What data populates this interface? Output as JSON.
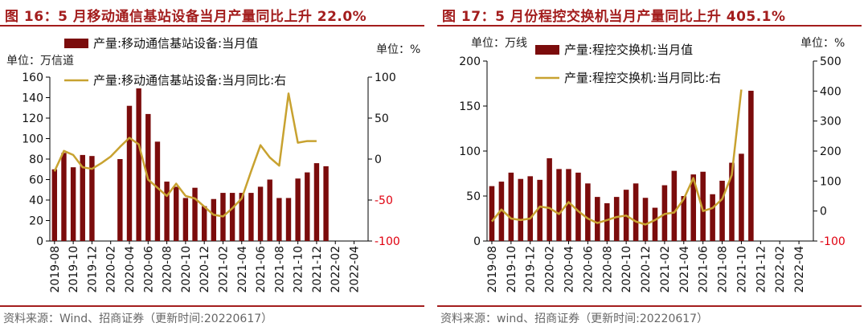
{
  "colors": {
    "bar": "#7b0c0c",
    "line": "#c8a230",
    "accent": "#a31d1d",
    "neg_tick": "#e0000f"
  },
  "chart_data": [
    {
      "type": "bar",
      "title": "图 16：5 月移动通信基站设备当月产量同比上升 22.0%",
      "unit_left": "单位：万信道",
      "unit_right": "单位：%",
      "source": "资料来源：Wind、招商证券（更新时间:20220617）",
      "legend": [
        "产量:移动通信基站设备:当月值",
        "产量:移动通信基站设备:当月同比:右"
      ],
      "ylim": [
        0,
        160
      ],
      "y_ticks": [
        "0",
        "20",
        "40",
        "60",
        "80",
        "100",
        "120",
        "140",
        "160"
      ],
      "y2lim": [
        -100,
        100
      ],
      "y2_ticks": [
        "-100",
        "-50",
        "0",
        "50",
        "100"
      ],
      "x_tick_labels": [
        "2019-08",
        "2019-10",
        "2019-12",
        "2020-02",
        "2020-04",
        "2020-06",
        "2020-08",
        "2020-10",
        "2020-12",
        "2021-02",
        "2021-04",
        "2021-06",
        "2021-08",
        "2021-10",
        "2021-12",
        "2022-02",
        "2022-04"
      ],
      "categories": [
        "2019-08",
        "2019-09",
        "2019-10",
        "2019-11",
        "2019-12",
        "2020-01",
        "2020-02",
        "2020-03",
        "2020-04",
        "2020-05",
        "2020-06",
        "2020-07",
        "2020-08",
        "2020-09",
        "2020-10",
        "2020-11",
        "2020-12",
        "2021-01",
        "2021-02",
        "2021-03",
        "2021-04",
        "2021-05",
        "2021-06",
        "2021-07",
        "2021-08",
        "2021-09",
        "2021-10",
        "2021-11",
        "2021-12",
        "2022-01",
        "2022-02",
        "2022-03",
        "2022-04",
        "2022-05"
      ],
      "series": [
        {
          "name": "产量:移动通信基站设备:当月值",
          "type": "bar",
          "axis": "left",
          "values": [
            70,
            86,
            72,
            84,
            83,
            null,
            null,
            80,
            132,
            149,
            124,
            97,
            58,
            53,
            42,
            52,
            34,
            41,
            47,
            47,
            47,
            47,
            53,
            60,
            42,
            42,
            61,
            67,
            76,
            73,
            null,
            null,
            null,
            null
          ]
        },
        {
          "name": "产量:移动通信基站设备:当月同比:右",
          "type": "line",
          "axis": "right",
          "values": [
            -15,
            10,
            5,
            -10,
            -12,
            -5,
            3,
            15,
            26,
            18,
            -25,
            -35,
            -45,
            -30,
            -45,
            -48,
            -58,
            -68,
            -70,
            -60,
            -48,
            -15,
            17,
            2,
            -8,
            80,
            20,
            22,
            22,
            null,
            null,
            null,
            null,
            null
          ]
        }
      ]
    },
    {
      "type": "bar",
      "title": "图 17：5 月份程控交换机当月产量同比上升 405.1%",
      "unit_left": "单位：万线",
      "unit_right": "单位：%",
      "source": "资料来源：wind、招商证券（更新时间:20220617）",
      "legend": [
        "产量:程控交换机:当月值",
        "产量:程控交换机:当月同比:右"
      ],
      "ylim": [
        0,
        200
      ],
      "y_ticks": [
        "0",
        "50",
        "100",
        "150",
        "200"
      ],
      "y2lim": [
        -100,
        500
      ],
      "y2_ticks": [
        "-100",
        "0",
        "100",
        "200",
        "300",
        "400",
        "500"
      ],
      "x_tick_labels": [
        "2019-08",
        "2019-10",
        "2019-12",
        "2020-02",
        "2020-04",
        "2020-06",
        "2020-08",
        "2020-10",
        "2020-12",
        "2021-02",
        "2021-04",
        "2021-06",
        "2021-08",
        "2021-10",
        "2021-12",
        "2022-02",
        "2022-04"
      ],
      "categories": [
        "2019-08",
        "2019-09",
        "2019-10",
        "2019-11",
        "2019-12",
        "2020-01",
        "2020-02",
        "2020-03",
        "2020-04",
        "2020-05",
        "2020-06",
        "2020-07",
        "2020-08",
        "2020-09",
        "2020-10",
        "2020-11",
        "2020-12",
        "2021-01",
        "2021-02",
        "2021-03",
        "2021-04",
        "2021-05",
        "2021-06",
        "2021-07",
        "2021-08",
        "2021-09",
        "2021-10",
        "2021-11",
        "2021-12",
        "2022-01",
        "2022-02",
        "2022-03",
        "2022-04",
        "2022-05"
      ],
      "series": [
        {
          "name": "产量:程控交换机:当月值",
          "type": "bar",
          "axis": "left",
          "values": [
            61,
            66,
            76,
            69,
            72,
            68,
            92,
            80,
            80,
            76,
            64,
            49,
            42,
            49,
            57,
            64,
            48,
            37,
            62,
            78,
            50,
            74,
            77,
            52,
            67,
            87,
            97,
            167,
            null,
            null,
            null,
            null,
            null,
            null
          ]
        },
        {
          "name": "产量:程控交换机:当月同比:右",
          "type": "line",
          "axis": "right",
          "values": [
            -35,
            5,
            -25,
            -30,
            -25,
            15,
            10,
            -10,
            30,
            0,
            -25,
            -40,
            -30,
            -20,
            -15,
            -35,
            -45,
            -30,
            -10,
            -5,
            40,
            110,
            0,
            10,
            40,
            120,
            405,
            null,
            null,
            null,
            null,
            null,
            null,
            null
          ]
        }
      ]
    }
  ]
}
